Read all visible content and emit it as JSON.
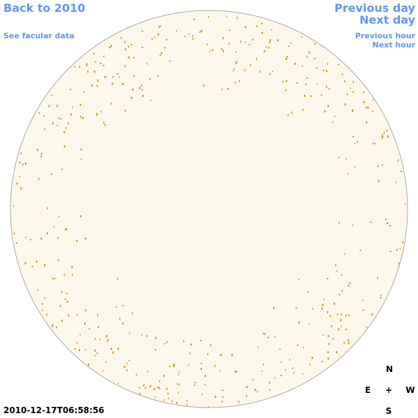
{
  "header": {
    "back_link": "Back to 2010",
    "facular_link": "See facular data",
    "previous_day": "Previous day",
    "next_day": "Next day",
    "previous_hour": "Previous hour",
    "next_hour": "Next hour"
  },
  "timestamp": "2010-12-17T06:58:56",
  "compass": {
    "north": "N",
    "east": "E",
    "center": "+",
    "west": "W",
    "south": "S"
  }
}
